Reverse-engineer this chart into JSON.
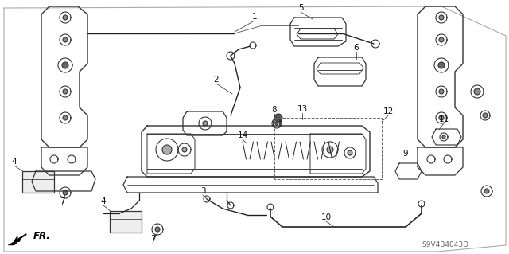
{
  "background_color": "#ffffff",
  "diagram_color": "#333333",
  "watermark": "S9V4B4043D",
  "figwidth": 6.4,
  "figheight": 3.19,
  "dpi": 100
}
